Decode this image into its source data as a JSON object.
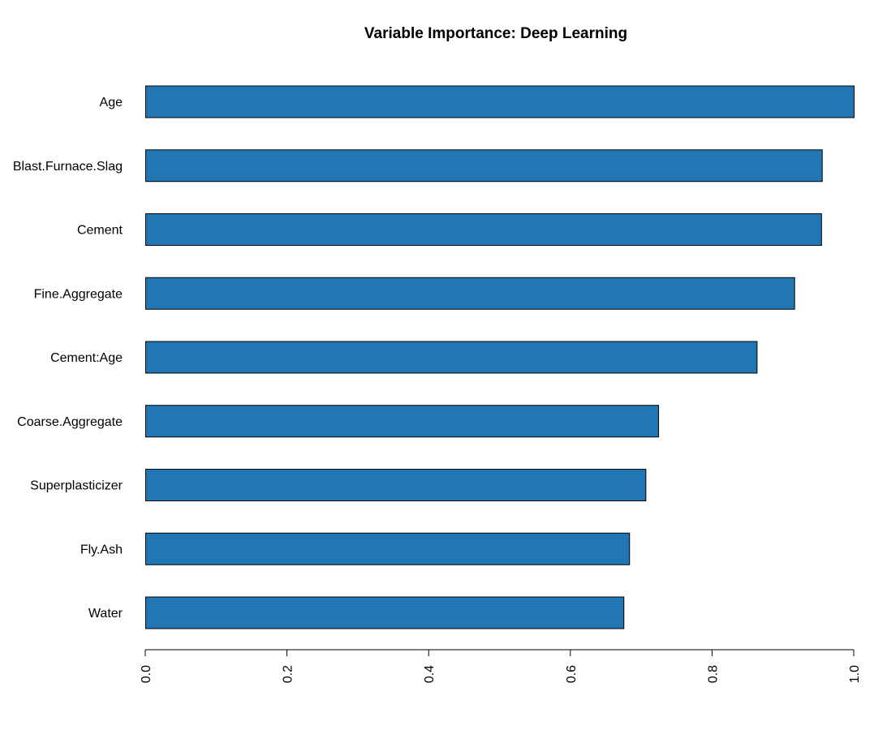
{
  "chart_data": {
    "type": "bar",
    "orientation": "horizontal",
    "title": "Variable Importance: Deep Learning",
    "xlabel": "",
    "ylabel": "",
    "categories": [
      "Age",
      "Blast.Furnace.Slag",
      "Cement",
      "Fine.Aggregate",
      "Cement:Age",
      "Coarse.Aggregate",
      "Superplasticizer",
      "Fly.Ash",
      "Water"
    ],
    "values": [
      1.0,
      0.955,
      0.954,
      0.916,
      0.863,
      0.724,
      0.706,
      0.683,
      0.675
    ],
    "xlim": [
      0,
      1
    ],
    "x_ticks": [
      "0.0",
      "0.2",
      "0.4",
      "0.6",
      "0.8",
      "1.0"
    ],
    "tick_label_orientation": "vertical",
    "bar_color": "#2077b4",
    "grid": false,
    "legend": "none"
  }
}
